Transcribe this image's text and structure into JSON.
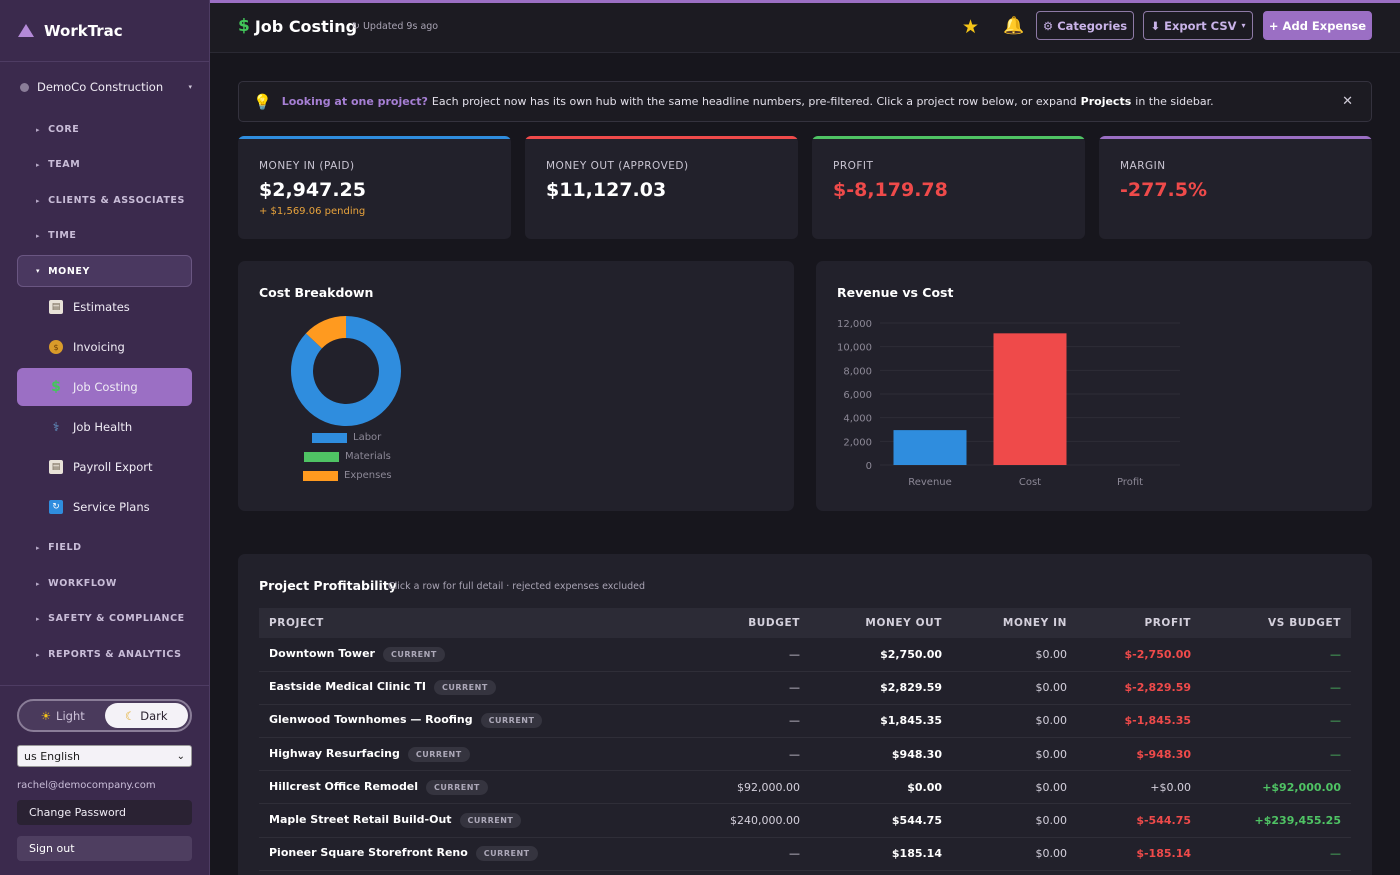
{
  "app": {
    "name": "WorkTrac"
  },
  "sidebar": {
    "company": "DemoCo Construction",
    "sections": [
      "CORE",
      "TEAM",
      "CLIENTS & ASSOCIATES",
      "TIME",
      "MONEY",
      "FIELD",
      "WORKFLOW",
      "SAFETY & COMPLIANCE",
      "REPORTS & ANALYTICS"
    ],
    "money_items": [
      "Estimates",
      "Invoicing",
      "Job Costing",
      "Job Health",
      "Payroll Export",
      "Service Plans"
    ],
    "theme": {
      "light": "Light",
      "dark": "Dark",
      "selected": "Dark"
    },
    "language": "us English",
    "email": "rachel@democompany.com",
    "change_password": "Change Password",
    "sign_out": "Sign out"
  },
  "header": {
    "title": "Job Costing",
    "updated": "↻ Updated 9s ago",
    "categories_label": "⚙ Categories",
    "export_label": "⬇ Export CSV",
    "add_expense_label": "+ Add Expense"
  },
  "banner": {
    "question": "Looking at one project?",
    "text1": "Each project now has its own hub with the same headline numbers, pre-filtered. Click a project row below, or expand",
    "strong": "Projects",
    "text2": "in the sidebar."
  },
  "stats": [
    {
      "label": "MONEY IN (PAID)",
      "value": "$2,947.25",
      "sub": "+ $1,569.06 pending",
      "color": "#2f8dde"
    },
    {
      "label": "MONEY OUT (APPROVED)",
      "value": "$11,127.03",
      "sub": "",
      "color": "#ef4a4a"
    },
    {
      "label": "PROFIT",
      "value": "$-8,179.78",
      "sub": "",
      "color": "#4fc364"
    },
    {
      "label": "MARGIN",
      "value": "-277.5%",
      "sub": "",
      "color": "#9b6fc4"
    }
  ],
  "chart_data": [
    {
      "type": "pie",
      "title": "Cost Breakdown",
      "categories": [
        "Labor",
        "Materials",
        "Expenses"
      ],
      "values": [
        87,
        0,
        13
      ],
      "colors": [
        "#2f8dde",
        "#4fc364",
        "#ff9a1f"
      ],
      "donut": true,
      "legend": "bottom"
    },
    {
      "type": "bar",
      "title": "Revenue vs Cost",
      "categories": [
        "Revenue",
        "Cost",
        "Profit"
      ],
      "values": [
        2947.25,
        11127.03,
        0
      ],
      "colors": [
        "#2f8dde",
        "#ef4a4a",
        "#4fc364"
      ],
      "ylim": [
        0,
        12000
      ],
      "yticks": [
        "12,000",
        "10,000",
        "8,000",
        "6,000",
        "4,000",
        "2,000",
        "0"
      ],
      "grid": true
    }
  ],
  "table": {
    "title": "Project Profitability",
    "subtitle": "Click a row for full detail · rejected expenses excluded",
    "headers": [
      "PROJECT",
      "BUDGET",
      "MONEY OUT",
      "MONEY IN",
      "PROFIT",
      "VS BUDGET"
    ],
    "rows": [
      {
        "project": "Downtown Tower",
        "tag": "CURRENT",
        "budget": "—",
        "out": "$2,750.00",
        "in": "$0.00",
        "profit": "$-2,750.00",
        "vs": "—"
      },
      {
        "project": "Eastside Medical Clinic TI",
        "tag": "CURRENT",
        "budget": "—",
        "out": "$2,829.59",
        "in": "$0.00",
        "profit": "$-2,829.59",
        "vs": "—"
      },
      {
        "project": "Glenwood Townhomes — Roofing",
        "tag": "CURRENT",
        "budget": "—",
        "out": "$1,845.35",
        "in": "$0.00",
        "profit": "$-1,845.35",
        "vs": "—"
      },
      {
        "project": "Highway Resurfacing",
        "tag": "CURRENT",
        "budget": "—",
        "out": "$948.30",
        "in": "$0.00",
        "profit": "$-948.30",
        "vs": "—"
      },
      {
        "project": "Hillcrest Office Remodel",
        "tag": "CURRENT",
        "budget": "$92,000.00",
        "out": "$0.00",
        "in": "$0.00",
        "profit": "+$0.00",
        "vs": "+$92,000.00"
      },
      {
        "project": "Maple Street Retail Build-Out",
        "tag": "CURRENT",
        "budget": "$240,000.00",
        "out": "$544.75",
        "in": "$0.00",
        "profit": "$-544.75",
        "vs": "+$239,455.25"
      },
      {
        "project": "Pioneer Square Storefront Reno",
        "tag": "CURRENT",
        "budget": "—",
        "out": "$185.14",
        "in": "$0.00",
        "profit": "$-185.14",
        "vs": "—"
      }
    ]
  },
  "icons": {
    "brand": "triangle-logo-icon",
    "estimates": "document-icon",
    "invoicing": "money-bag-icon",
    "job_costing": "dollar-icon",
    "job_health": "stethoscope-icon",
    "payroll": "document-icon",
    "service_plans": "refresh-icon"
  }
}
